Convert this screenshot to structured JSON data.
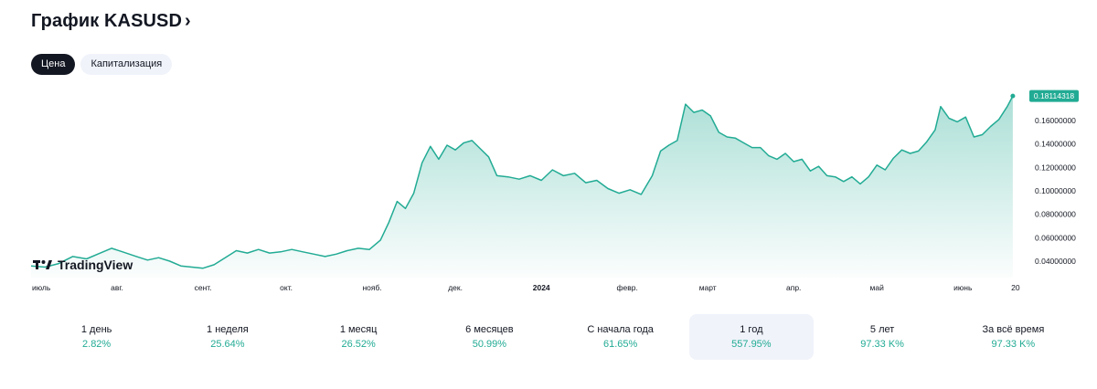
{
  "header": {
    "title": "График KASUSD",
    "chevron": "›"
  },
  "tabs": [
    {
      "label": "Цена",
      "active": true
    },
    {
      "label": "Капитализация",
      "active": false
    }
  ],
  "logo": {
    "text": "TradingView"
  },
  "chart_data": {
    "type": "area",
    "symbol": "KASUSD",
    "last_value": 0.18114318,
    "last_value_label": "0.18114318",
    "y_ticks": [
      "0.16000000",
      "0.14000000",
      "0.12000000",
      "0.10000000",
      "0.08000000",
      "0.06000000",
      "0.04000000"
    ],
    "y_tick_values": [
      0.16,
      0.14,
      0.12,
      0.1,
      0.08,
      0.06,
      0.04
    ],
    "ylim": [
      0.026,
      0.185
    ],
    "x_ticks": [
      {
        "label": "июль",
        "bold": false,
        "pos": 0
      },
      {
        "label": "авг.",
        "bold": false,
        "pos": 31
      },
      {
        "label": "сент.",
        "bold": false,
        "pos": 62
      },
      {
        "label": "окт.",
        "bold": false,
        "pos": 92
      },
      {
        "label": "нояб.",
        "bold": false,
        "pos": 123
      },
      {
        "label": "дек.",
        "bold": false,
        "pos": 153
      },
      {
        "label": "2024",
        "bold": true,
        "pos": 184
      },
      {
        "label": "февр.",
        "bold": false,
        "pos": 215
      },
      {
        "label": "март",
        "bold": false,
        "pos": 244
      },
      {
        "label": "апр.",
        "bold": false,
        "pos": 275
      },
      {
        "label": "май",
        "bold": false,
        "pos": 305
      },
      {
        "label": "июнь",
        "bold": false,
        "pos": 336
      },
      {
        "label": "20",
        "bold": false,
        "pos": 355
      }
    ],
    "x_span": 358,
    "series": [
      {
        "values": [
          [
            0,
            0.036
          ],
          [
            5,
            0.035
          ],
          [
            10,
            0.038
          ],
          [
            15,
            0.044
          ],
          [
            20,
            0.042
          ],
          [
            25,
            0.047
          ],
          [
            29,
            0.051
          ],
          [
            33,
            0.048
          ],
          [
            38,
            0.044
          ],
          [
            42,
            0.041
          ],
          [
            46,
            0.043
          ],
          [
            50,
            0.04
          ],
          [
            54,
            0.036
          ],
          [
            58,
            0.035
          ],
          [
            62,
            0.034
          ],
          [
            66,
            0.037
          ],
          [
            70,
            0.043
          ],
          [
            74,
            0.049
          ],
          [
            78,
            0.047
          ],
          [
            82,
            0.05
          ],
          [
            86,
            0.047
          ],
          [
            90,
            0.048
          ],
          [
            94,
            0.05
          ],
          [
            98,
            0.048
          ],
          [
            102,
            0.046
          ],
          [
            106,
            0.044
          ],
          [
            110,
            0.046
          ],
          [
            114,
            0.049
          ],
          [
            118,
            0.051
          ],
          [
            122,
            0.05
          ],
          [
            126,
            0.058
          ],
          [
            129,
            0.073
          ],
          [
            132,
            0.091
          ],
          [
            135,
            0.085
          ],
          [
            138,
            0.098
          ],
          [
            141,
            0.124
          ],
          [
            144,
            0.138
          ],
          [
            147,
            0.127
          ],
          [
            150,
            0.139
          ],
          [
            153,
            0.135
          ],
          [
            156,
            0.141
          ],
          [
            159,
            0.143
          ],
          [
            162,
            0.136
          ],
          [
            165,
            0.129
          ],
          [
            168,
            0.113
          ],
          [
            172,
            0.112
          ],
          [
            176,
            0.11
          ],
          [
            180,
            0.113
          ],
          [
            184,
            0.109
          ],
          [
            188,
            0.118
          ],
          [
            192,
            0.113
          ],
          [
            196,
            0.115
          ],
          [
            200,
            0.107
          ],
          [
            204,
            0.109
          ],
          [
            208,
            0.102
          ],
          [
            212,
            0.098
          ],
          [
            216,
            0.101
          ],
          [
            220,
            0.097
          ],
          [
            224,
            0.113
          ],
          [
            227,
            0.134
          ],
          [
            230,
            0.139
          ],
          [
            233,
            0.143
          ],
          [
            236,
            0.174
          ],
          [
            239,
            0.167
          ],
          [
            242,
            0.169
          ],
          [
            245,
            0.164
          ],
          [
            248,
            0.15
          ],
          [
            251,
            0.146
          ],
          [
            254,
            0.145
          ],
          [
            257,
            0.141
          ],
          [
            260,
            0.137
          ],
          [
            263,
            0.137
          ],
          [
            266,
            0.13
          ],
          [
            269,
            0.127
          ],
          [
            272,
            0.132
          ],
          [
            275,
            0.125
          ],
          [
            278,
            0.127
          ],
          [
            281,
            0.117
          ],
          [
            284,
            0.121
          ],
          [
            287,
            0.113
          ],
          [
            290,
            0.112
          ],
          [
            293,
            0.108
          ],
          [
            296,
            0.112
          ],
          [
            299,
            0.106
          ],
          [
            302,
            0.112
          ],
          [
            305,
            0.122
          ],
          [
            308,
            0.118
          ],
          [
            311,
            0.128
          ],
          [
            314,
            0.135
          ],
          [
            317,
            0.132
          ],
          [
            320,
            0.134
          ],
          [
            323,
            0.142
          ],
          [
            326,
            0.152
          ],
          [
            328,
            0.172
          ],
          [
            331,
            0.162
          ],
          [
            334,
            0.159
          ],
          [
            337,
            0.163
          ],
          [
            340,
            0.146
          ],
          [
            343,
            0.148
          ],
          [
            346,
            0.155
          ],
          [
            349,
            0.161
          ],
          [
            352,
            0.172
          ],
          [
            354,
            0.181
          ]
        ]
      }
    ],
    "colors": {
      "line": "#22ab94",
      "fill_top": "#22ab94",
      "label_bg": "#22ab94",
      "label_text": "#ffffff",
      "axis_text": "#131722"
    }
  },
  "periods": [
    {
      "label": "1 день",
      "value": "2.82%",
      "active": false
    },
    {
      "label": "1 неделя",
      "value": "25.64%",
      "active": false
    },
    {
      "label": "1 месяц",
      "value": "26.52%",
      "active": false
    },
    {
      "label": "6 месяцев",
      "value": "50.99%",
      "active": false
    },
    {
      "label": "С начала года",
      "value": "61.65%",
      "active": false
    },
    {
      "label": "1 год",
      "value": "557.95%",
      "active": true
    },
    {
      "label": "5 лет",
      "value": "97.33 K%",
      "active": false
    },
    {
      "label": "За всё время",
      "value": "97.33 K%",
      "active": false
    }
  ]
}
